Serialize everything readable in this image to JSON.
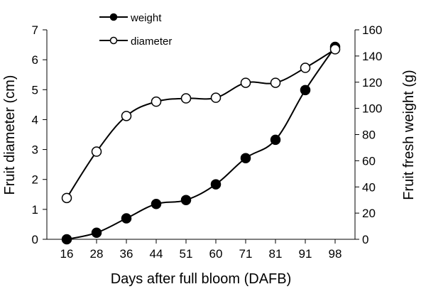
{
  "chart_data": {
    "type": "line",
    "categories": [
      "16",
      "28",
      "36",
      "44",
      "51",
      "60",
      "71",
      "81",
      "91",
      "98"
    ],
    "xlabel": "Days after full bloom (DAFB)",
    "ylabel_left": "Fruit diameter (cm)",
    "ylabel_right": "Fruit fresh weight (g)",
    "ylim_left": [
      0,
      7
    ],
    "ylim_right": [
      0,
      160
    ],
    "yticks_left": [
      "0",
      "1",
      "2",
      "3",
      "4",
      "5",
      "6",
      "7"
    ],
    "yticks_right": [
      "0",
      "20",
      "40",
      "60",
      "80",
      "100",
      "120",
      "140",
      "160"
    ],
    "legend_position": "top-left",
    "series": [
      {
        "name": "weight",
        "axis": "right",
        "marker": "filled-circle",
        "color": "#000000",
        "values": [
          0,
          5,
          16,
          27,
          30,
          42,
          62,
          76,
          114,
          147
        ]
      },
      {
        "name": "diameter",
        "axis": "left",
        "marker": "open-circle",
        "color": "#000000",
        "values": [
          1.38,
          2.93,
          4.12,
          4.6,
          4.71,
          4.73,
          5.23,
          5.23,
          5.73,
          6.35
        ]
      }
    ]
  }
}
